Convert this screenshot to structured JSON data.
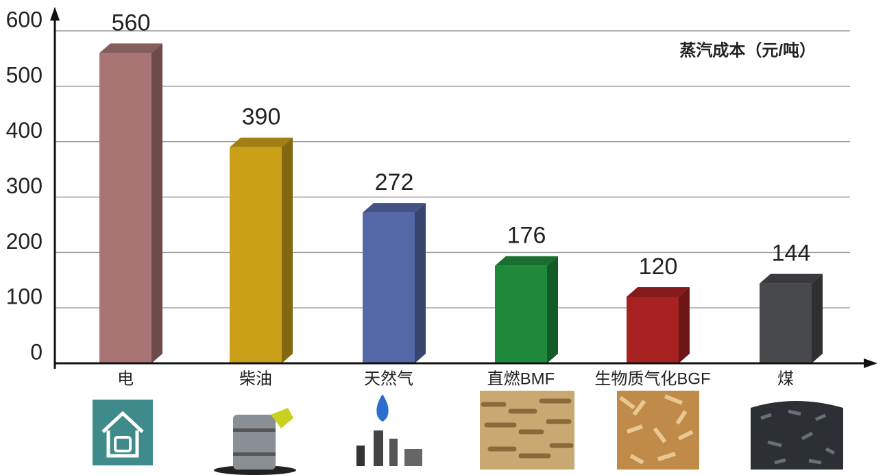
{
  "chart_data": {
    "type": "bar",
    "annotation": "蒸汽成本（元/吨）",
    "categories": [
      "电",
      "柴油",
      "天然气",
      "直燃BMF",
      "生物质气化BGF",
      "煤"
    ],
    "values": [
      560,
      390,
      272,
      176,
      120,
      144
    ],
    "colors": [
      "#a87474",
      "#c9a018",
      "#5468a8",
      "#1f8a3c",
      "#a82222",
      "#48494c"
    ],
    "ylim": [
      0,
      600
    ],
    "yticks": [
      0,
      100,
      200,
      300,
      400,
      500,
      600
    ],
    "grid": true
  }
}
